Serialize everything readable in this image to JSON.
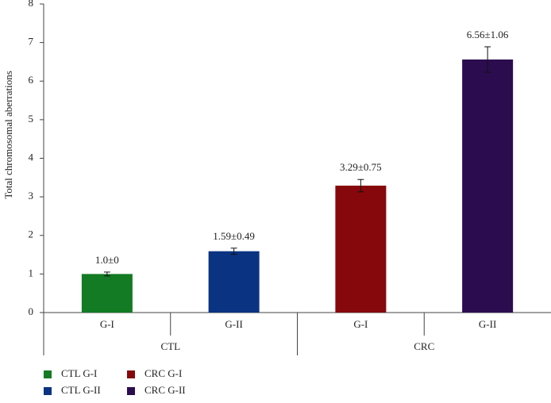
{
  "chart_data": {
    "type": "bar",
    "ylabel": "Total chromosomal aberrations",
    "categories": [
      "G-I",
      "G-II",
      "G-I",
      "G-II"
    ],
    "groups": [
      "CTL",
      "CRC"
    ],
    "values": [
      1.0,
      1.59,
      3.29,
      6.56
    ],
    "errors": [
      0.05,
      0.08,
      0.16,
      0.33
    ],
    "value_labels": [
      "1.0±0",
      "1.59±0.49",
      "3.29±0.75",
      "6.56±1.06"
    ],
    "colors": [
      "#127b23",
      "#0a3381",
      "#86080c",
      "#2b0c4e"
    ],
    "legend": [
      "CTL G-I",
      "CTL G-II",
      "CRC G-I",
      "CRC G-II"
    ],
    "ylim": [
      0,
      8
    ],
    "yticks": [
      0,
      1,
      2,
      3,
      4,
      5,
      6,
      7,
      8
    ],
    "grid": false
  }
}
